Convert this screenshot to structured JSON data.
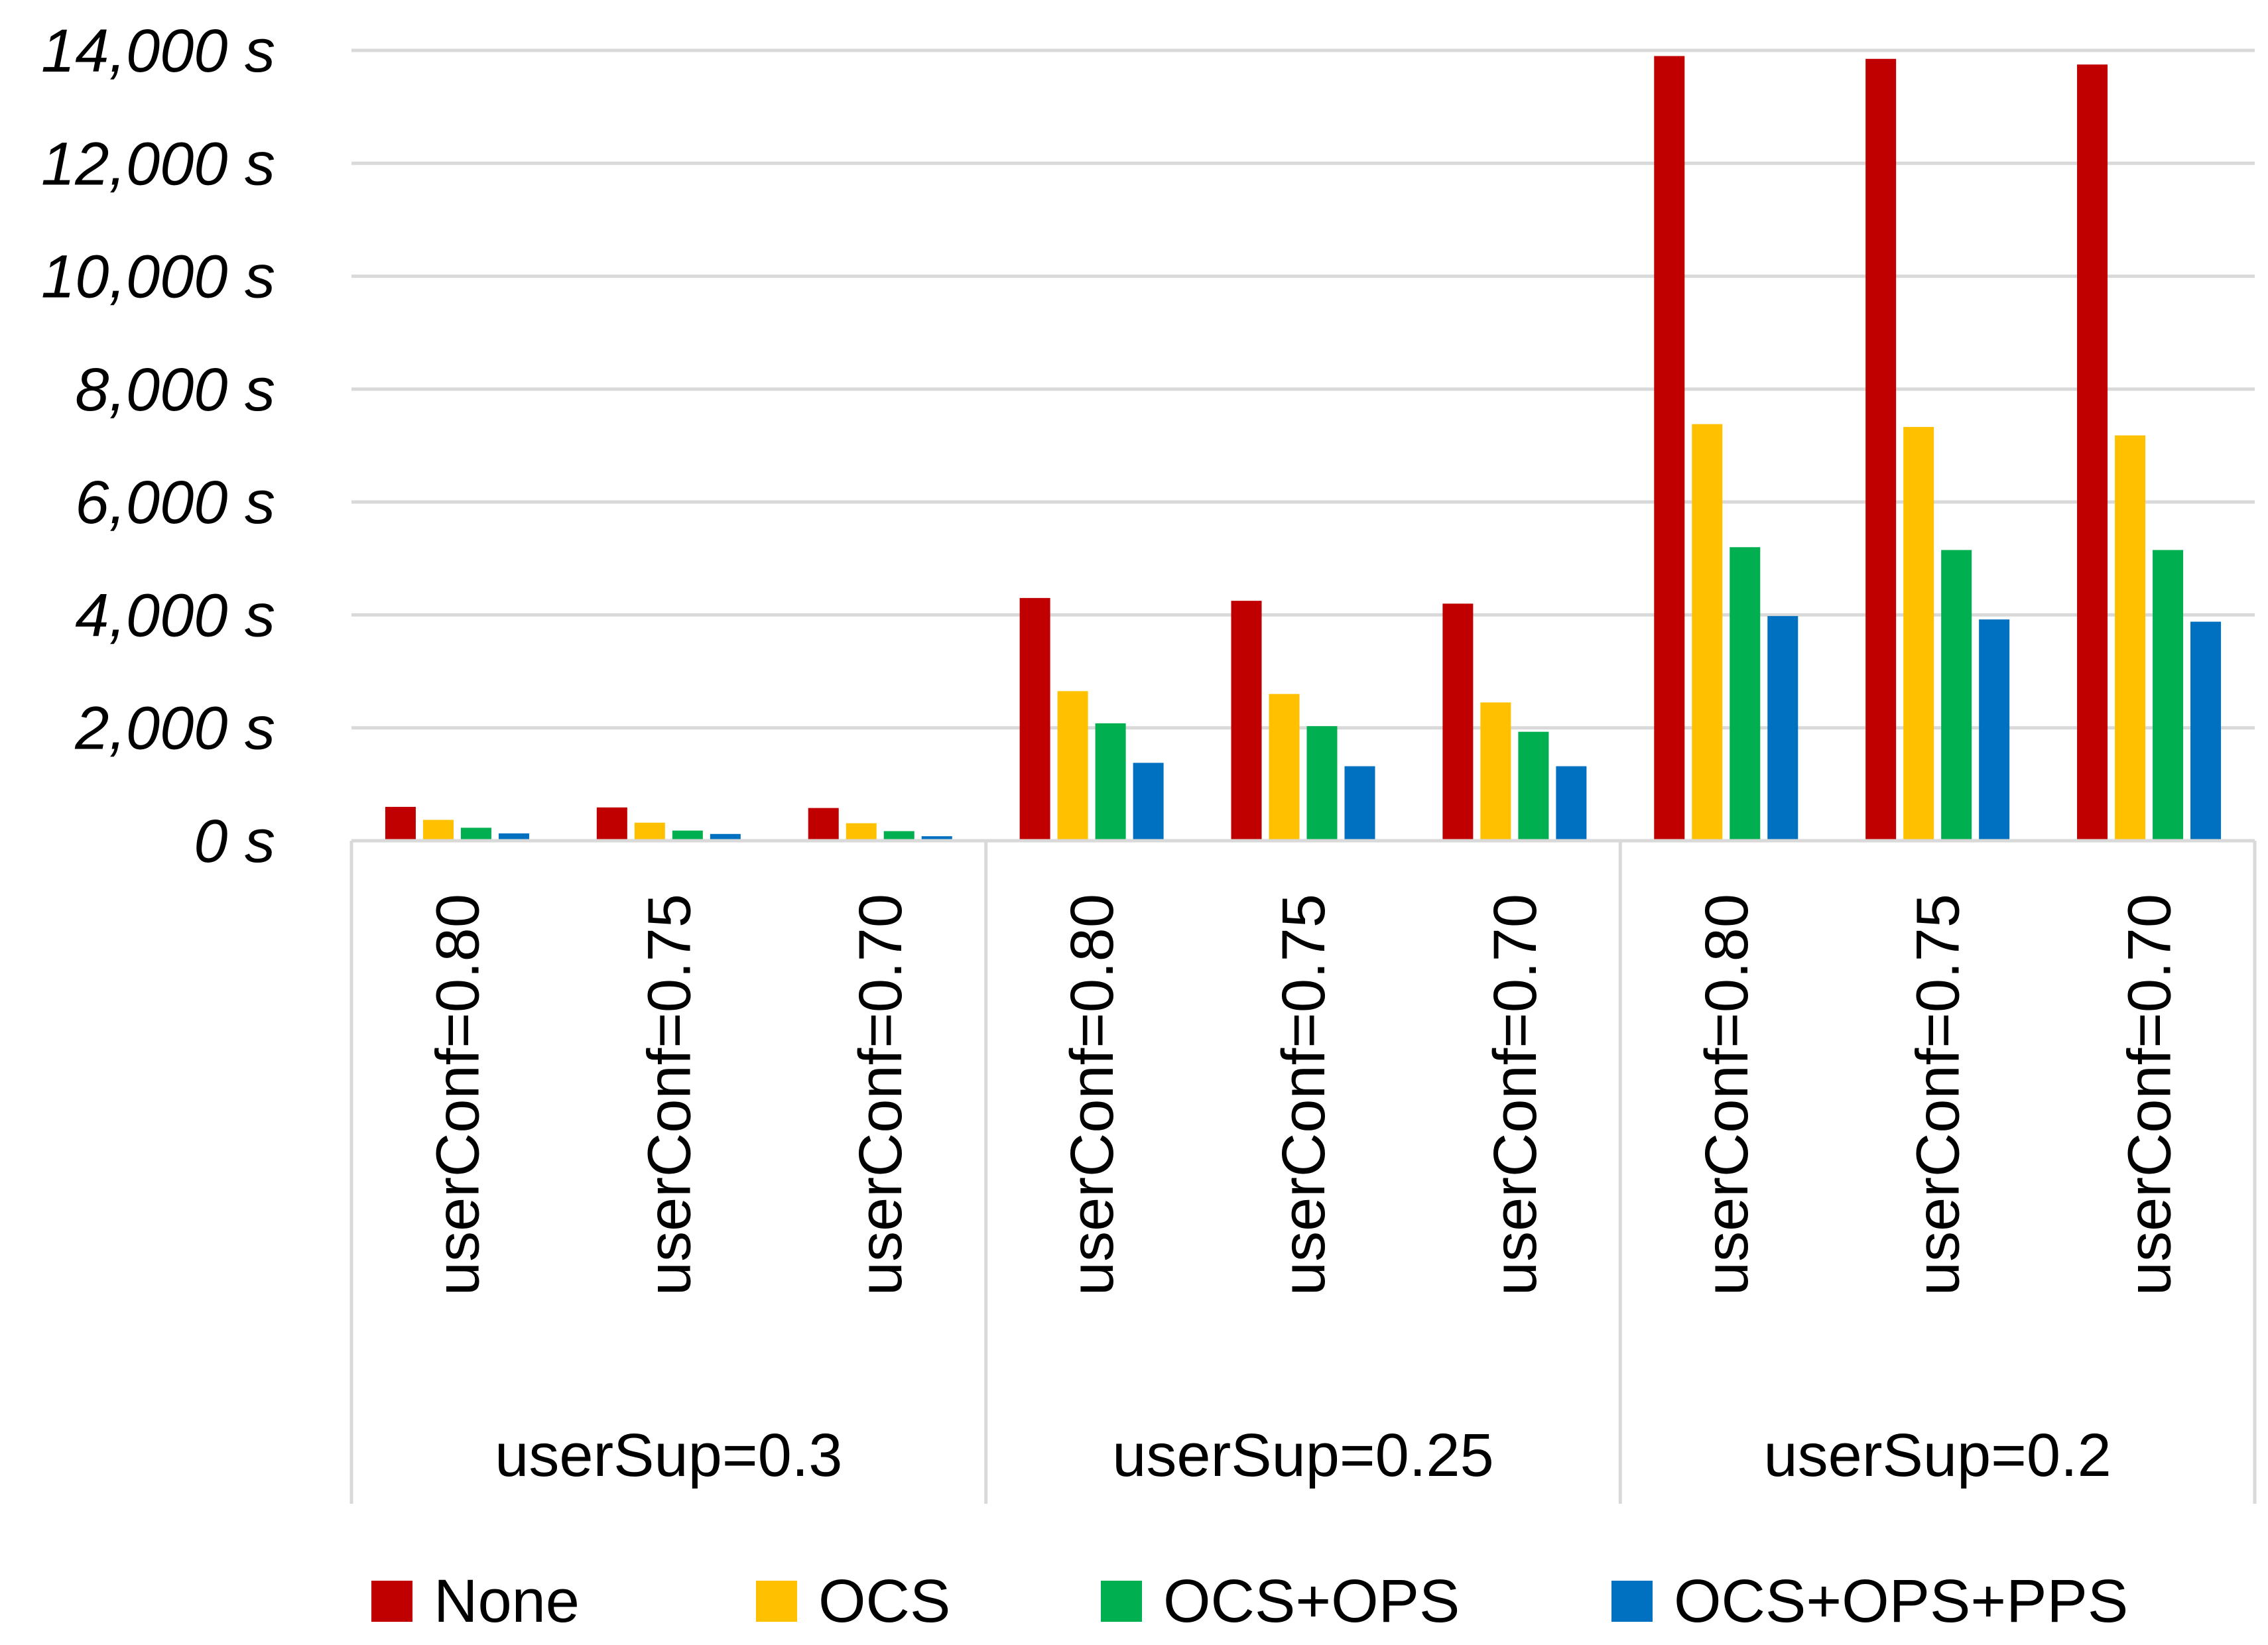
{
  "chart_data": {
    "type": "bar",
    "title": "",
    "xlabel": "",
    "ylabel": "",
    "ylim": [
      0,
      14000
    ],
    "y_tick_values": [
      0,
      2000,
      4000,
      6000,
      8000,
      10000,
      12000,
      14000
    ],
    "y_tick_labels": [
      "0 s",
      "2,000 s",
      "4,000 s",
      "6,000 s",
      "8,000 s",
      "10,000 s",
      "12,000 s",
      "14,000 s"
    ],
    "grid": true,
    "legend_position": "bottom",
    "groups": [
      {
        "label": "userSup=0.3",
        "categories": [
          "userConf=0.80",
          "userConf=0.75",
          "userConf=0.70"
        ]
      },
      {
        "label": "userSup=0.25",
        "categories": [
          "userConf=0.80",
          "userConf=0.75",
          "userConf=0.70"
        ]
      },
      {
        "label": "userSup=0.2",
        "categories": [
          "userConf=0.80",
          "userConf=0.75",
          "userConf=0.70"
        ]
      }
    ],
    "series": [
      {
        "name": "None",
        "color": "#c00000",
        "values": [
          600,
          590,
          580,
          4300,
          4250,
          4200,
          13900,
          13850,
          13750
        ]
      },
      {
        "name": "OCS",
        "color": "#ffc000",
        "values": [
          370,
          320,
          310,
          2650,
          2600,
          2450,
          7380,
          7330,
          7180
        ]
      },
      {
        "name": "OCS+OPS",
        "color": "#00b050",
        "values": [
          230,
          180,
          170,
          2080,
          2030,
          1930,
          5200,
          5150,
          5150
        ]
      },
      {
        "name": "OCS+OPS+PPS",
        "color": "#0070c0",
        "values": [
          130,
          120,
          80,
          1380,
          1320,
          1320,
          3980,
          3920,
          3880
        ]
      }
    ]
  }
}
